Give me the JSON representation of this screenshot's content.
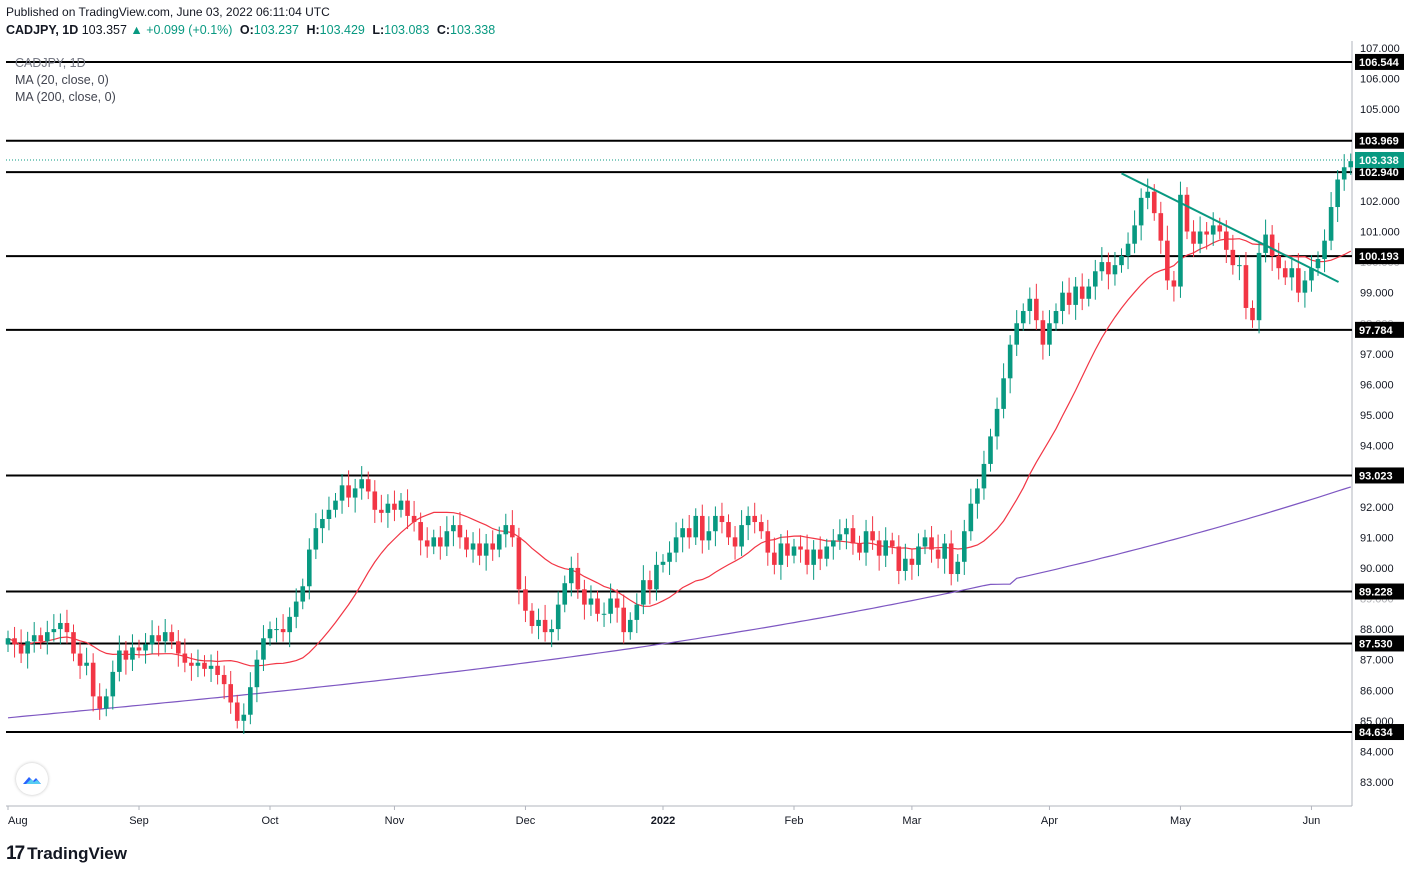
{
  "header": {
    "published": "Published on TradingView.com, June 03, 2022 06:11:04 UTC"
  },
  "ohlc": {
    "symbol": "CADJPY, 1D",
    "last": "103.357",
    "change": "▲ +0.099 (+0.1%)",
    "o_label": "O:",
    "o": "103.237",
    "h_label": "H:",
    "h": "103.429",
    "l_label": "L:",
    "l": "103.083",
    "c_label": "C:",
    "c": "103.338"
  },
  "legend": {
    "title": "CADJPY, 1D",
    "ma20": "MA (20, close, 0)",
    "ma200": "MA (200, close, 0)"
  },
  "brand": {
    "name": "TradingView",
    "logo_glyph": "17"
  },
  "colors": {
    "up": "#089981",
    "down": "#f23645",
    "ma20": "#f23645",
    "ma200": "#7e57c2",
    "trendline": "#089981",
    "hline": "#000000",
    "axis_text": "#131722"
  },
  "chart_data": {
    "type": "candlestick",
    "title": "CADJPY, 1D",
    "ylim": [
      82.5,
      107.2
    ],
    "y_ticks": [
      "83.000",
      "84.000",
      "85.000",
      "86.000",
      "87.000",
      "88.000",
      "89.000",
      "90.000",
      "91.000",
      "92.000",
      "93.000",
      "94.000",
      "95.000",
      "96.000",
      "97.000",
      "98.000",
      "99.000",
      "100.000",
      "101.000",
      "102.000",
      "103.000",
      "104.000",
      "105.000",
      "106.000",
      "107.000"
    ],
    "x_ticks": [
      {
        "label": "Aug",
        "day": 0
      },
      {
        "label": "Sep",
        "day": 20
      },
      {
        "label": "Oct",
        "day": 40
      },
      {
        "label": "Nov",
        "day": 59
      },
      {
        "label": "Dec",
        "day": 79
      },
      {
        "label": "2022",
        "day": 100
      },
      {
        "label": "Feb",
        "day": 120
      },
      {
        "label": "Mar",
        "day": 138
      },
      {
        "label": "Apr",
        "day": 159
      },
      {
        "label": "May",
        "day": 179
      },
      {
        "label": "Jun",
        "day": 199
      }
    ],
    "last_day": 201,
    "horizontal_levels": [
      "106.544",
      "103.969",
      "102.940",
      "100.193",
      "97.784",
      "93.023",
      "89.228",
      "87.530",
      "84.634"
    ],
    "current_price": "103.338",
    "ma200_endpoints": [
      85.1,
      92.65
    ],
    "trendline": {
      "start": [
        171,
        102.9
      ],
      "end": [
        201,
        99.35
      ]
    },
    "closes": [
      87.7,
      87.5,
      87.2,
      87.6,
      87.8,
      87.6,
      87.9,
      88.0,
      88.2,
      87.9,
      87.2,
      86.8,
      86.9,
      85.8,
      85.4,
      85.8,
      86.6,
      87.3,
      87.0,
      87.4,
      87.3,
      87.5,
      87.8,
      87.6,
      87.9,
      87.6,
      87.2,
      86.9,
      86.8,
      86.9,
      86.7,
      86.8,
      86.5,
      86.2,
      85.6,
      85.0,
      85.2,
      86.1,
      87.0,
      87.7,
      88.0,
      88.0,
      87.9,
      88.4,
      88.9,
      89.4,
      90.6,
      91.3,
      91.6,
      91.9,
      92.2,
      92.7,
      92.3,
      92.6,
      92.9,
      92.5,
      91.9,
      91.8,
      92.1,
      91.9,
      92.2,
      91.7,
      91.5,
      90.9,
      90.7,
      91.0,
      90.7,
      91.2,
      91.4,
      91.0,
      90.6,
      90.8,
      90.4,
      90.8,
      90.6,
      91.1,
      91.4,
      91.0,
      89.3,
      88.6,
      88.1,
      88.3,
      87.9,
      88.0,
      88.8,
      89.5,
      90.0,
      89.3,
      88.8,
      89.0,
      88.5,
      88.5,
      89.0,
      88.7,
      87.9,
      88.3,
      88.8,
      89.6,
      89.3,
      90.1,
      90.2,
      90.5,
      91.0,
      91.3,
      91.0,
      91.7,
      90.9,
      91.2,
      91.7,
      91.5,
      91.0,
      90.7,
      91.4,
      91.7,
      91.5,
      91.2,
      90.5,
      90.1,
      90.8,
      90.4,
      90.7,
      90.6,
      90.1,
      90.6,
      90.3,
      90.7,
      90.9,
      91.1,
      91.3,
      90.8,
      90.5,
      91.2,
      90.9,
      90.4,
      90.9,
      90.7,
      89.9,
      90.3,
      90.1,
      90.7,
      91.0,
      90.6,
      90.3,
      90.8,
      89.8,
      90.2,
      91.2,
      92.1,
      92.6,
      93.4,
      94.3,
      95.2,
      96.2,
      97.3,
      98.0,
      98.4,
      98.8,
      98.1,
      97.3,
      98.0,
      98.4,
      99.0,
      98.6,
      99.2,
      98.8,
      99.2,
      99.7,
      100.0,
      99.6,
      99.9,
      100.2,
      100.6,
      101.2,
      102.1,
      102.3,
      101.6,
      100.7,
      99.4,
      99.2,
      102.2,
      101.0,
      100.6,
      101.0,
      100.9,
      101.2,
      101.0,
      100.4,
      99.9,
      99.9,
      98.5,
      98.1,
      100.3,
      100.9,
      100.2,
      99.8,
      99.5,
      99.8,
      99.0,
      99.4,
      99.8,
      100.1,
      100.7,
      101.8,
      102.7,
      103.1,
      103.3
    ]
  }
}
